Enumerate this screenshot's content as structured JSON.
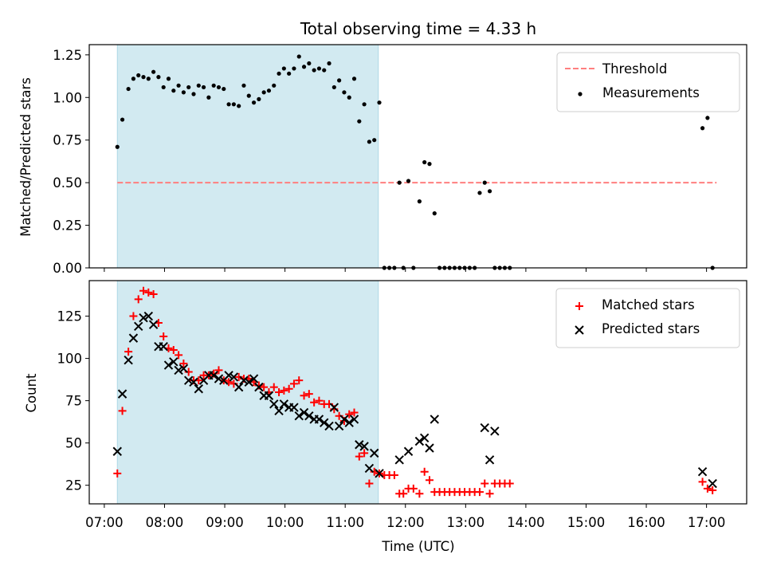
{
  "chart_data": [
    {
      "type": "scatter",
      "panel": "top",
      "title": "Total observing time = 4.33 h",
      "ylabel": "Matched/Predicted stars",
      "xlabel": "",
      "ylim": [
        0,
        1.31
      ],
      "xlim": [
        "06:45",
        "17:40"
      ],
      "yticks": [
        "0.00",
        "0.25",
        "0.50",
        "0.75",
        "1.00",
        "1.25"
      ],
      "shaded_interval": [
        "07:13",
        "11:33"
      ],
      "shade_color": "#add8e6",
      "legend_placement": "top-right",
      "threshold": {
        "name": "Threshold",
        "value": 0.5,
        "x": [
          "07:13",
          "17:10"
        ],
        "color": "#ff7f7f",
        "style": "dashed"
      },
      "series": [
        {
          "name": "Measurements",
          "color": "#000000",
          "marker": "dot",
          "x": [
            "07:13",
            "07:18",
            "07:24",
            "07:29",
            "07:34",
            "07:39",
            "07:44",
            "07:49",
            "07:54",
            "07:59",
            "08:04",
            "08:09",
            "08:14",
            "08:19",
            "08:24",
            "08:29",
            "08:34",
            "08:39",
            "08:44",
            "08:49",
            "08:54",
            "08:59",
            "09:04",
            "09:09",
            "09:14",
            "09:19",
            "09:24",
            "09:29",
            "09:34",
            "09:39",
            "09:44",
            "09:49",
            "09:54",
            "09:59",
            "10:04",
            "10:09",
            "10:14",
            "10:19",
            "10:24",
            "10:29",
            "10:34",
            "10:39",
            "10:44",
            "10:49",
            "10:54",
            "10:59",
            "11:04",
            "11:09",
            "11:14",
            "11:19",
            "11:24",
            "11:29",
            "11:34",
            "11:39",
            "11:44",
            "11:49",
            "11:54",
            "11:58",
            "12:03",
            "12:08",
            "12:14",
            "12:19",
            "12:24",
            "12:29",
            "12:34",
            "12:39",
            "12:44",
            "12:49",
            "12:54",
            "12:59",
            "13:04",
            "13:09",
            "13:14",
            "13:19",
            "13:24",
            "13:29",
            "13:34",
            "13:39",
            "13:44",
            "16:56",
            "17:01",
            "17:06"
          ],
          "y": [
            0.71,
            0.87,
            1.05,
            1.11,
            1.13,
            1.12,
            1.11,
            1.15,
            1.12,
            1.06,
            1.11,
            1.04,
            1.07,
            1.03,
            1.06,
            1.02,
            1.07,
            1.06,
            1.0,
            1.07,
            1.06,
            1.05,
            0.96,
            0.96,
            0.95,
            1.07,
            1.01,
            0.97,
            0.99,
            1.03,
            1.04,
            1.07,
            1.14,
            1.17,
            1.14,
            1.17,
            1.24,
            1.18,
            1.2,
            1.16,
            1.17,
            1.16,
            1.2,
            1.06,
            1.1,
            1.03,
            1.0,
            1.11,
            0.86,
            0.96,
            0.74,
            0.75,
            0.97,
            0.0,
            0.0,
            0.0,
            0.5,
            0.0,
            0.51,
            0.0,
            0.39,
            0.62,
            0.61,
            0.32,
            0.0,
            0.0,
            0.0,
            0.0,
            0.0,
            0.0,
            0.0,
            0.0,
            0.44,
            0.5,
            0.45,
            0.0,
            0.0,
            0.0,
            0.0,
            0.82,
            0.88,
            0.0
          ]
        }
      ]
    },
    {
      "type": "scatter",
      "panel": "bottom",
      "title": "",
      "xlabel": "Time (UTC)",
      "ylabel": "Count",
      "ylim": [
        14,
        146
      ],
      "xlim": [
        "06:45",
        "17:40"
      ],
      "yticks": [
        "25",
        "50",
        "75",
        "100",
        "125"
      ],
      "xticks": [
        "07:00",
        "08:00",
        "09:00",
        "10:00",
        "11:00",
        "12:00",
        "13:00",
        "14:00",
        "15:00",
        "16:00",
        "17:00"
      ],
      "shaded_interval": [
        "07:13",
        "11:33"
      ],
      "legend_placement": "top-right",
      "series": [
        {
          "name": "Matched stars",
          "color": "#ff0000",
          "marker": "plus",
          "x": [
            "07:13",
            "07:18",
            "07:24",
            "07:29",
            "07:34",
            "07:39",
            "07:44",
            "07:49",
            "07:54",
            "07:59",
            "08:04",
            "08:09",
            "08:14",
            "08:19",
            "08:24",
            "08:29",
            "08:34",
            "08:39",
            "08:44",
            "08:49",
            "08:54",
            "08:59",
            "09:04",
            "09:09",
            "09:14",
            "09:19",
            "09:24",
            "09:29",
            "09:34",
            "09:39",
            "09:44",
            "09:49",
            "09:54",
            "09:59",
            "10:04",
            "10:09",
            "10:14",
            "10:19",
            "10:24",
            "10:29",
            "10:34",
            "10:39",
            "10:44",
            "10:49",
            "10:54",
            "10:59",
            "11:04",
            "11:09",
            "11:14",
            "11:19",
            "11:24",
            "11:29",
            "11:34",
            "11:39",
            "11:44",
            "11:49",
            "11:54",
            "11:58",
            "12:03",
            "12:08",
            "12:14",
            "12:19",
            "12:24",
            "12:29",
            "12:34",
            "12:39",
            "12:44",
            "12:49",
            "12:54",
            "12:59",
            "13:04",
            "13:09",
            "13:14",
            "13:19",
            "13:24",
            "13:29",
            "13:34",
            "13:39",
            "13:44",
            "16:56",
            "17:01",
            "17:06"
          ],
          "y": [
            32,
            69,
            104,
            125,
            135,
            140,
            139,
            138,
            121,
            113,
            106,
            105,
            102,
            97,
            92,
            87,
            87,
            90,
            90,
            91,
            93,
            87,
            86,
            85,
            89,
            88,
            88,
            86,
            84,
            83,
            80,
            83,
            80,
            81,
            82,
            85,
            87,
            78,
            79,
            74,
            75,
            73,
            73,
            70,
            66,
            63,
            67,
            68,
            42,
            44,
            26,
            33,
            32,
            31,
            31,
            31,
            20,
            20,
            23,
            23,
            20,
            33,
            28,
            21,
            21,
            21,
            21,
            21,
            21,
            21,
            21,
            21,
            21,
            26,
            20,
            26,
            26,
            26,
            26,
            27,
            23,
            22
          ]
        },
        {
          "name": "Predicted stars",
          "color": "#000000",
          "marker": "x",
          "x": [
            "07:13",
            "07:18",
            "07:24",
            "07:29",
            "07:34",
            "07:39",
            "07:44",
            "07:49",
            "07:54",
            "07:59",
            "08:04",
            "08:09",
            "08:14",
            "08:19",
            "08:24",
            "08:29",
            "08:34",
            "08:39",
            "08:44",
            "08:49",
            "08:54",
            "08:59",
            "09:04",
            "09:09",
            "09:14",
            "09:19",
            "09:24",
            "09:29",
            "09:34",
            "09:39",
            "09:44",
            "09:49",
            "09:54",
            "09:59",
            "10:04",
            "10:09",
            "10:14",
            "10:19",
            "10:24",
            "10:29",
            "10:34",
            "10:39",
            "10:44",
            "10:49",
            "10:54",
            "10:59",
            "11:04",
            "11:09",
            "11:14",
            "11:19",
            "11:24",
            "11:29",
            "11:34",
            "11:54",
            "12:03",
            "12:14",
            "12:19",
            "12:24",
            "12:29",
            "13:19",
            "13:24",
            "13:29",
            "16:56",
            "17:06"
          ],
          "y": [
            45,
            79,
            99,
            112,
            119,
            124,
            125,
            120,
            107,
            107,
            96,
            98,
            93,
            94,
            87,
            86,
            82,
            87,
            90,
            90,
            88,
            87,
            90,
            89,
            83,
            87,
            86,
            88,
            83,
            78,
            78,
            73,
            69,
            73,
            71,
            71,
            66,
            68,
            66,
            64,
            64,
            62,
            60,
            71,
            60,
            64,
            62,
            64,
            49,
            48,
            35,
            44,
            32,
            40,
            45,
            51,
            53,
            47,
            64,
            59,
            40,
            57,
            33,
            26
          ]
        }
      ]
    }
  ]
}
